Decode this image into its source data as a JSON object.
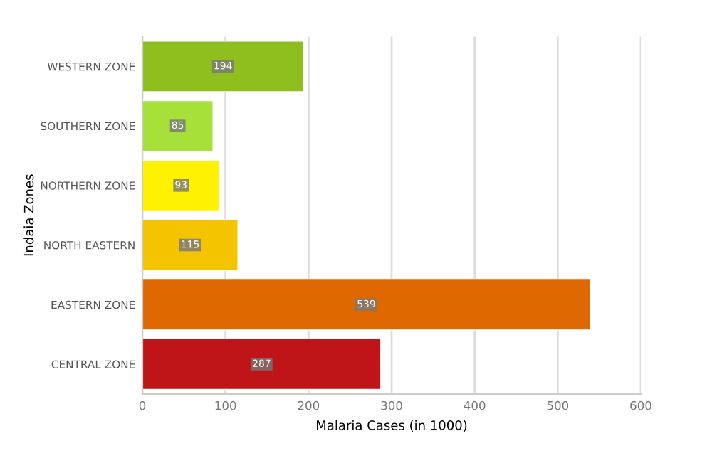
{
  "chart_data": {
    "type": "bar",
    "orientation": "horizontal",
    "xlabel": "Malaria Cases (in 1000)",
    "ylabel": "Indaia Zones",
    "categories": [
      "WESTERN ZONE",
      "SOUTHERN ZONE",
      "NORTHERN ZONE",
      "NORTH EASTERN",
      "EASTERN ZONE",
      "CENTRAL ZONE"
    ],
    "values": [
      194,
      85,
      93,
      115,
      539,
      287
    ],
    "colors": [
      "#8fbf1f",
      "#a8e03a",
      "#fff200",
      "#f5c400",
      "#e06800",
      "#c01518"
    ],
    "xlim": [
      0,
      600
    ],
    "xticks": [
      0,
      100,
      200,
      300,
      400,
      500,
      600
    ],
    "grid": "x",
    "data_labels": true
  }
}
